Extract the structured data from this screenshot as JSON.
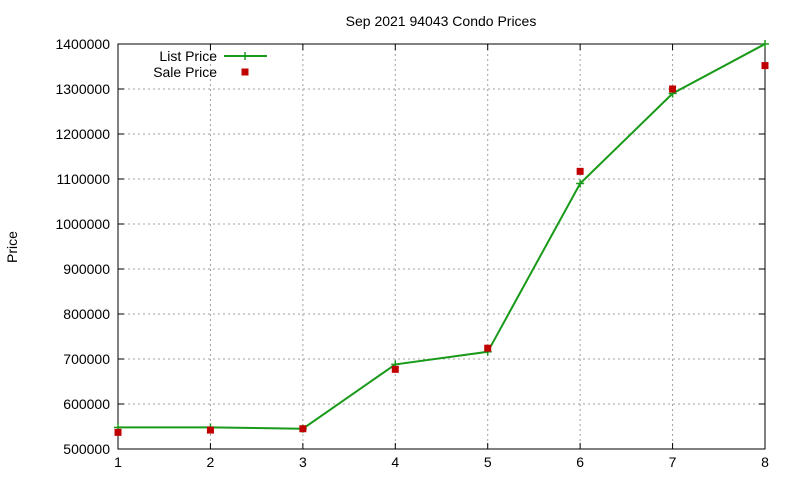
{
  "chart_data": {
    "type": "line",
    "title": "Sep 2021 94043 Condo Prices",
    "xlabel": "",
    "ylabel": "Price",
    "x": [
      1,
      2,
      3,
      4,
      5,
      6,
      7,
      8
    ],
    "xlim": [
      1,
      8
    ],
    "ylim": [
      500000,
      1400000
    ],
    "xticks": [
      "1",
      "2",
      "3",
      "4",
      "5",
      "6",
      "7",
      "8"
    ],
    "yticks": [
      "500000",
      "600000",
      "700000",
      "800000",
      "900000",
      "1000000",
      "1100000",
      "1200000",
      "1300000",
      "1400000"
    ],
    "grid": true,
    "legend_position": "top-left",
    "series": [
      {
        "name": "List Price",
        "style": "line-plus",
        "color": "#1a9a1a",
        "values": [
          548000,
          548000,
          545000,
          688000,
          716000,
          1090000,
          1290000,
          1400000
        ]
      },
      {
        "name": "Sale Price",
        "style": "square-markers",
        "color": "#c00000",
        "values": [
          537000,
          542000,
          545000,
          677000,
          724000,
          1117000,
          1300000,
          1352000
        ]
      }
    ]
  }
}
